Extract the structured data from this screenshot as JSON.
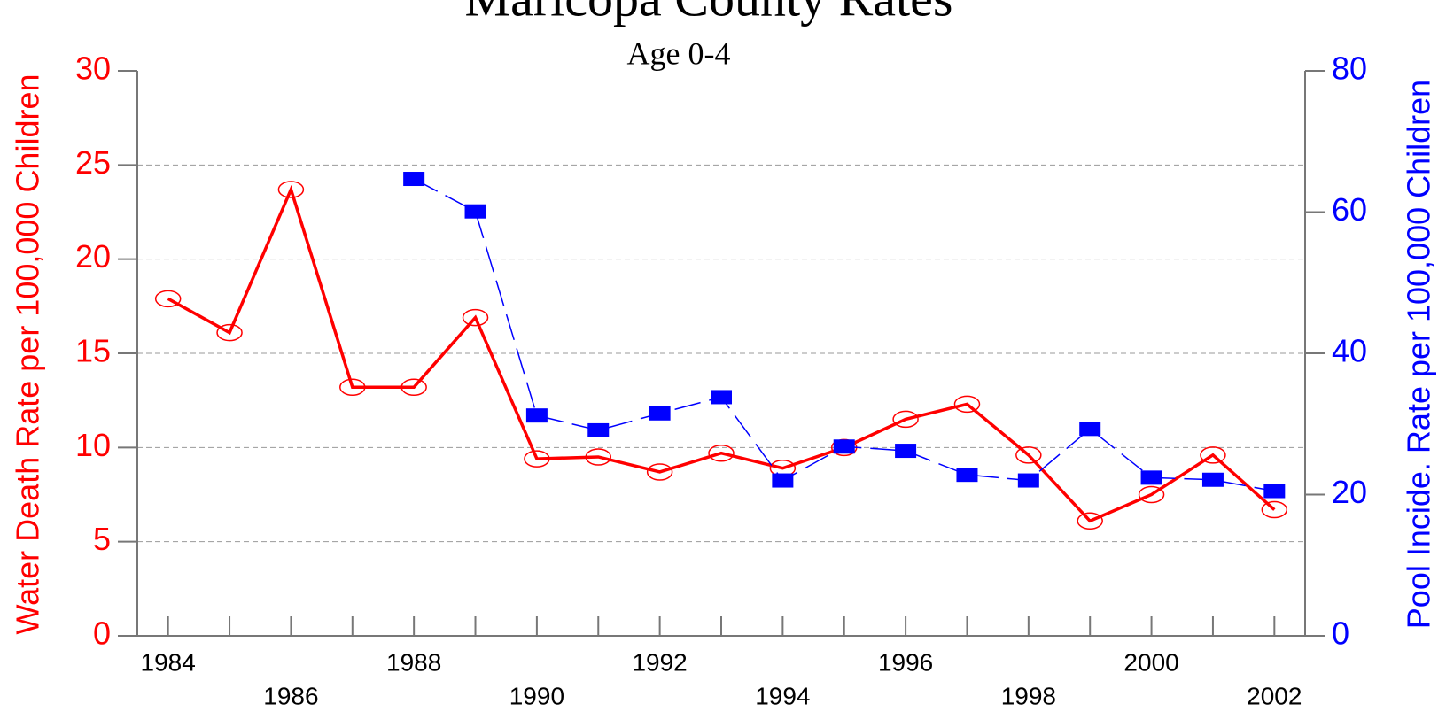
{
  "chart_data": {
    "type": "line",
    "title": "Maricopa County Rates",
    "subtitle": "Age 0-4",
    "ylabel": "Water Death Rate per 100,000 Children",
    "y2label": "Pool Incide. Rate per 100,000 Children",
    "x": [
      1984,
      1985,
      1986,
      1987,
      1988,
      1989,
      1990,
      1991,
      1992,
      1993,
      1994,
      1995,
      1996,
      1997,
      1998,
      1999,
      2000,
      2001,
      2002
    ],
    "xlim": [
      1983.5,
      2002.5
    ],
    "xticks": [
      1984,
      1986,
      1988,
      1990,
      1992,
      1994,
      1996,
      1998,
      2000,
      2002
    ],
    "ylim": [
      0,
      30
    ],
    "yticks": [
      0,
      5,
      10,
      15,
      20,
      25,
      30
    ],
    "y2lim": [
      0,
      80
    ],
    "y2ticks": [
      0,
      20,
      40,
      60,
      80
    ],
    "grid": true,
    "series": [
      {
        "name": "Water Death Rate",
        "color": "#ff0000",
        "values": [
          17.9,
          16.1,
          23.7,
          13.2,
          13.2,
          16.9,
          9.4,
          9.5,
          8.7,
          9.7,
          8.9,
          10.0,
          11.5,
          12.3,
          9.6,
          6.1,
          7.5,
          9.6,
          6.7
        ]
      },
      {
        "name": "Pool Incide. Rate",
        "color": "#0000ff",
        "axis": "y2",
        "values": [
          null,
          null,
          null,
          null,
          64.7,
          60.1,
          31.2,
          29.1,
          31.5,
          33.8,
          22.0,
          26.8,
          26.2,
          22.8,
          22.0,
          29.3,
          22.4,
          22.1,
          20.5
        ]
      }
    ]
  }
}
